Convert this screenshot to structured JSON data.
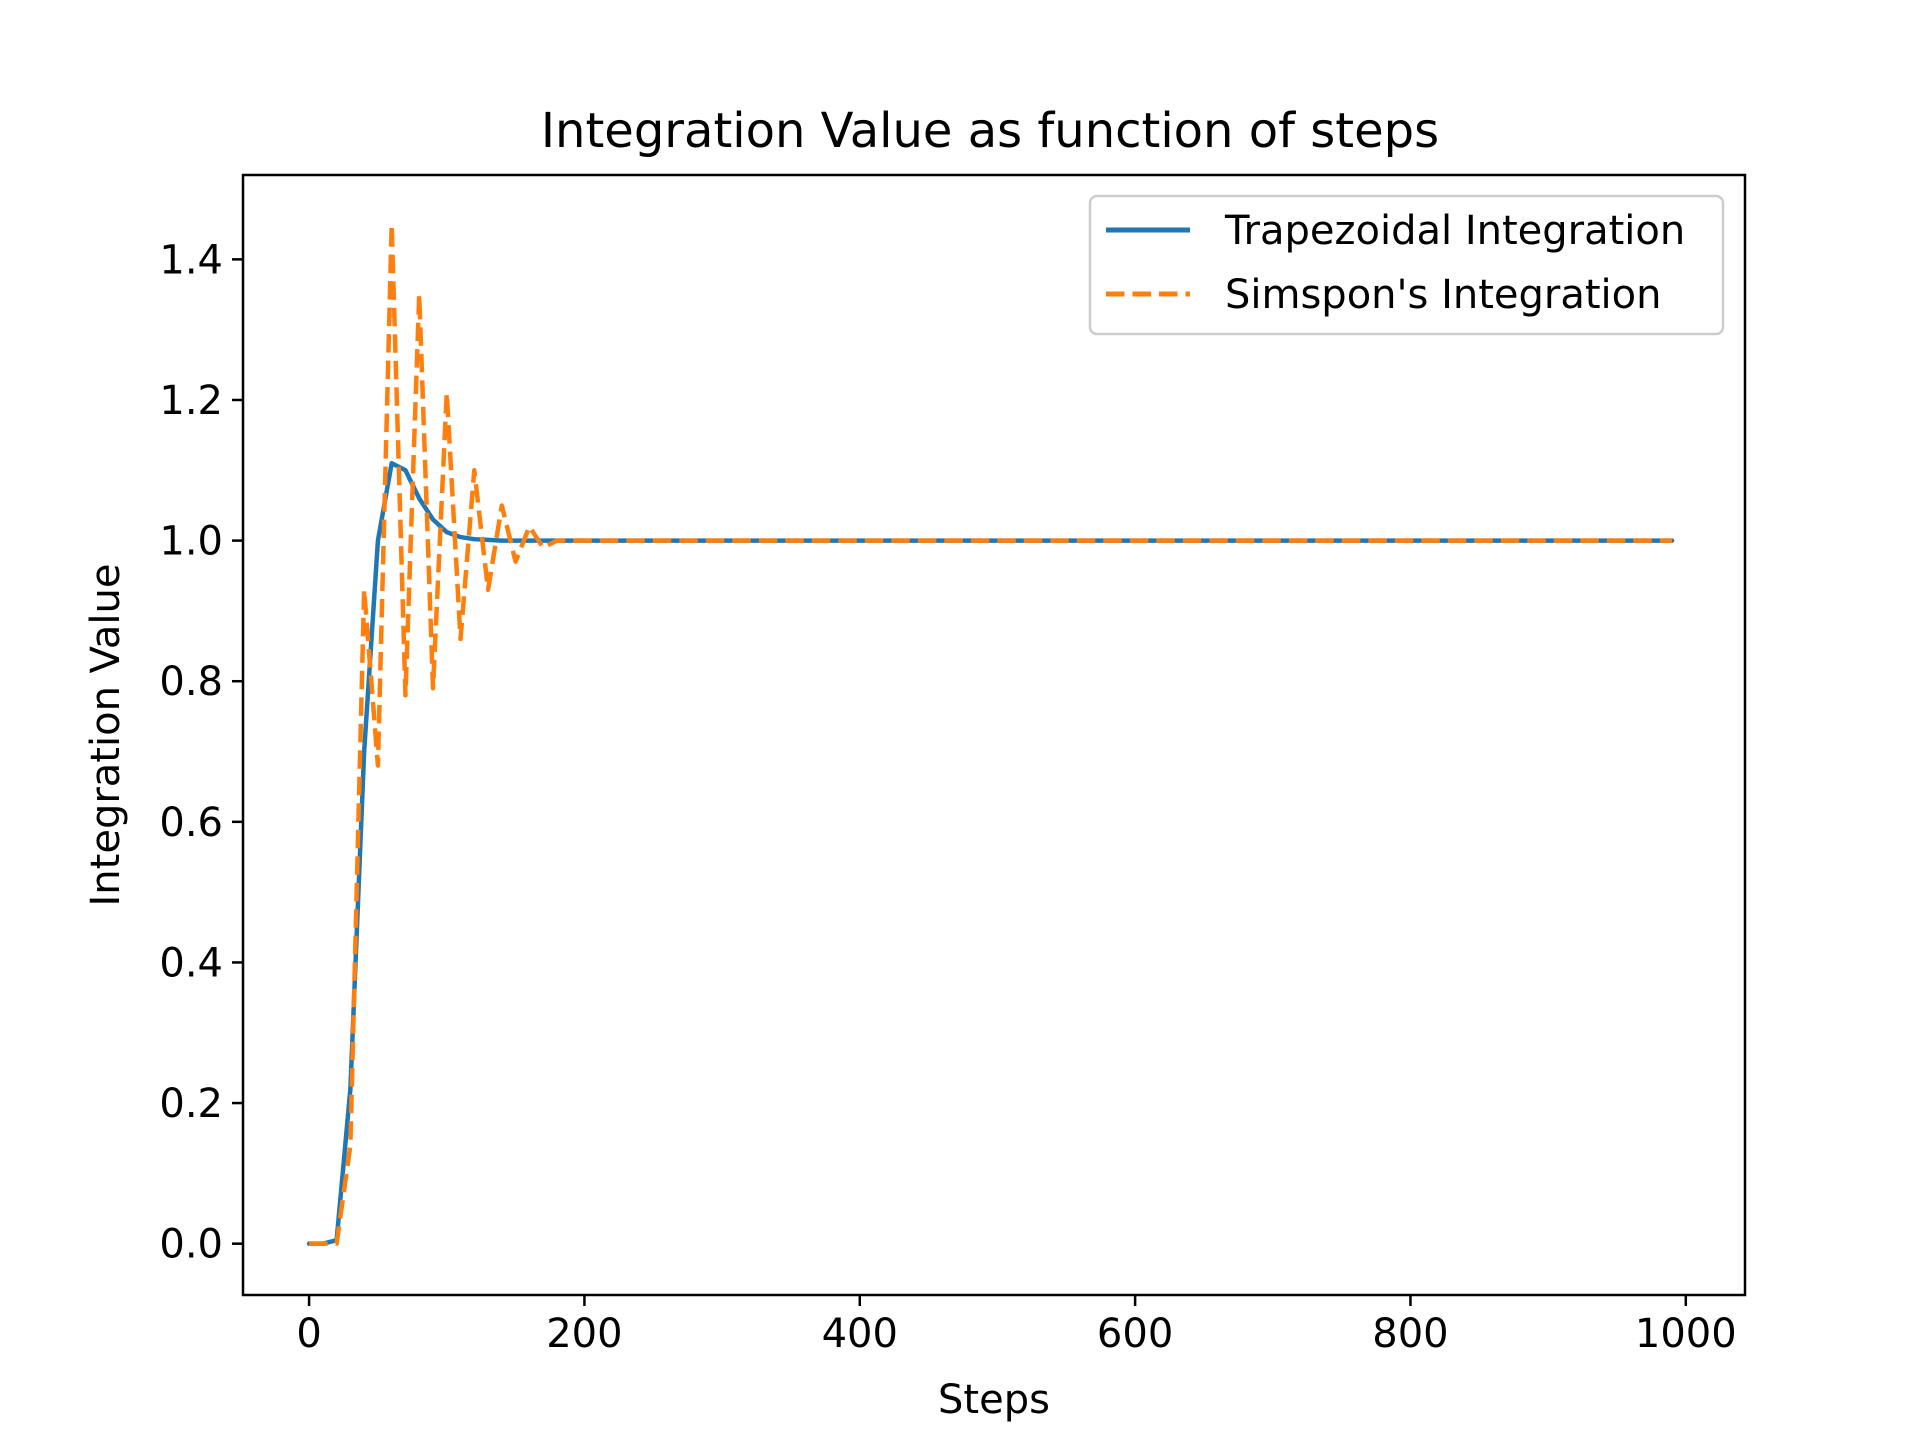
{
  "chart_data": {
    "type": "line",
    "title": "Integration Value as function of steps",
    "xlabel": "Steps",
    "ylabel": "Integration Value",
    "xlim": [
      -48,
      1043
    ],
    "ylim": [
      -0.073,
      1.52
    ],
    "xticks": [
      0,
      200,
      400,
      600,
      800,
      1000
    ],
    "xtick_labels": [
      "0",
      "200",
      "400",
      "600",
      "800",
      "1000"
    ],
    "yticks": [
      0.0,
      0.2,
      0.4,
      0.6,
      0.8,
      1.0,
      1.2,
      1.4
    ],
    "ytick_labels": [
      "0.0",
      "0.2",
      "0.4",
      "0.6",
      "0.8",
      "1.0",
      "1.2",
      "1.4"
    ],
    "grid": false,
    "legend_position": "top-right",
    "series": [
      {
        "name": "Trapezoidal Integration",
        "color": "#1f77b4",
        "style": "solid",
        "x": [
          0,
          10,
          20,
          30,
          40,
          50,
          60,
          70,
          80,
          90,
          100,
          110,
          120,
          130,
          140,
          150,
          160,
          170,
          180,
          190,
          200,
          300,
          400,
          500,
          600,
          700,
          800,
          900,
          990
        ],
        "y": [
          0.0,
          0.0,
          0.005,
          0.22,
          0.7,
          1.0,
          1.11,
          1.1,
          1.06,
          1.03,
          1.012,
          1.005,
          1.002,
          1.001,
          1.0,
          1.0,
          1.0,
          1.0,
          1.0,
          1.0,
          1.0,
          1.0,
          1.0,
          1.0,
          1.0,
          1.0,
          1.0,
          1.0,
          1.0
        ]
      },
      {
        "name": "Simspon's Integration",
        "color": "#ff7f0e",
        "style": "dashed",
        "x": [
          0,
          10,
          20,
          30,
          40,
          50,
          60,
          70,
          80,
          90,
          100,
          110,
          120,
          130,
          140,
          150,
          160,
          170,
          180,
          190,
          200,
          300,
          400,
          500,
          600,
          700,
          800,
          900,
          990
        ],
        "y": [
          0.0,
          0.0,
          0.0,
          0.14,
          0.93,
          0.68,
          1.45,
          0.78,
          1.35,
          0.79,
          1.21,
          0.86,
          1.1,
          0.93,
          1.05,
          0.97,
          1.02,
          0.99,
          1.0,
          1.0,
          1.0,
          1.0,
          1.0,
          1.0,
          1.0,
          1.0,
          1.0,
          1.0,
          1.0
        ]
      }
    ]
  }
}
